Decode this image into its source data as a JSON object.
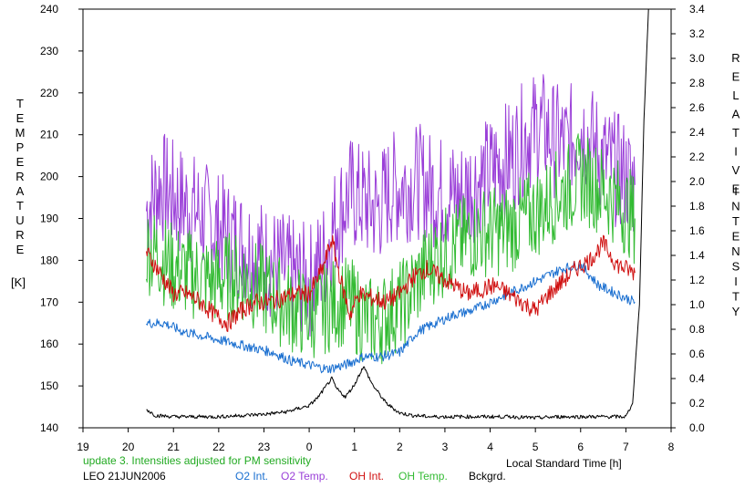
{
  "chart_data": {
    "type": "line",
    "title": "",
    "xlabel": "Local Standard Time [h]",
    "ylabel_left_letters": [
      "T",
      "E",
      "M",
      "P",
      "E",
      "R",
      "A",
      "T",
      "U",
      "R",
      "E"
    ],
    "ylabel_left_unit": "[K]",
    "ylabel_right_letters": [
      "R",
      "E",
      "L",
      "A",
      "T",
      "I",
      "V",
      "E",
      "I",
      "N",
      "T",
      "E",
      "N",
      "S",
      "I",
      "T",
      "Y"
    ],
    "xlim": [
      19,
      8
    ],
    "ylim_left": [
      140,
      240
    ],
    "ylim_right": [
      0.0,
      3.4
    ],
    "x_ticks": [
      "19",
      "20",
      "21",
      "22",
      "23",
      "0",
      "1",
      "2",
      "3",
      "4",
      "5",
      "6",
      "7",
      "8"
    ],
    "y_ticks_left": [
      "140",
      "150",
      "160",
      "170",
      "180",
      "190",
      "200",
      "210",
      "220",
      "230",
      "240"
    ],
    "y_ticks_right": [
      "0.0",
      "0.2",
      "0.4",
      "0.6",
      "0.8",
      "1.0",
      "1.2",
      "1.4",
      "1.6",
      "1.8",
      "2.0",
      "2.2",
      "2.4",
      "2.6",
      "2.8",
      "3.0",
      "3.2",
      "3.4"
    ],
    "grid": false,
    "legend_position": "bottom",
    "series": [
      {
        "name": "O2 Int.",
        "color": "#1a6fd0",
        "axis": "left",
        "x": [
          20.4,
          20.8,
          21.2,
          21.6,
          22.0,
          22.4,
          22.8,
          23.2,
          23.6,
          24.0,
          24.4,
          24.8,
          25.2,
          25.6,
          26.0,
          26.4,
          26.8,
          27.2,
          27.6,
          28.0,
          28.4,
          28.8,
          29.2,
          29.6,
          30.0,
          30.4,
          30.8,
          31.2
        ],
        "y": [
          165,
          165,
          163,
          162,
          161,
          160,
          159,
          158,
          156,
          155,
          154,
          155,
          157,
          157,
          158,
          163,
          165,
          167,
          168,
          170,
          172,
          174,
          176,
          178,
          179,
          174,
          172,
          170
        ]
      },
      {
        "name": "O2 Temp.",
        "color": "#9a3fd8",
        "axis": "left",
        "x": [
          20.4,
          20.7,
          21.0,
          21.3,
          21.6,
          21.9,
          22.2,
          22.5,
          22.8,
          23.1,
          23.4,
          23.7,
          24.0,
          24.3,
          24.6,
          24.9,
          25.2,
          25.5,
          25.8,
          26.1,
          26.4,
          26.7,
          27.0,
          27.3,
          27.6,
          27.9,
          28.2,
          28.5,
          28.8,
          29.1,
          29.4,
          29.7,
          30.0,
          30.3,
          30.6,
          30.9,
          31.2
        ],
        "y": [
          192,
          198,
          195,
          193,
          191,
          188,
          186,
          184,
          182,
          180,
          178,
          176,
          175,
          180,
          190,
          196,
          194,
          192,
          197,
          198,
          199,
          197,
          196,
          195,
          198,
          200,
          203,
          205,
          210,
          212,
          209,
          207,
          212,
          207,
          203,
          201,
          198
        ]
      },
      {
        "name": "OH Int.",
        "color": "#d01010",
        "axis": "left",
        "x": [
          20.4,
          20.7,
          21.0,
          21.3,
          21.6,
          21.9,
          22.2,
          22.5,
          22.8,
          23.1,
          23.4,
          23.7,
          24.0,
          24.3,
          24.5,
          24.7,
          24.9,
          25.1,
          25.4,
          25.7,
          26.0,
          26.3,
          26.6,
          26.9,
          27.2,
          27.5,
          27.8,
          28.1,
          28.4,
          28.7,
          29.0,
          29.3,
          29.6,
          29.9,
          30.2,
          30.5,
          30.8,
          31.2
        ],
        "y": [
          182,
          177,
          172,
          172,
          170,
          167,
          165,
          168,
          170,
          170,
          171,
          172,
          172,
          178,
          185,
          175,
          167,
          172,
          171,
          170,
          172,
          176,
          178,
          176,
          174,
          172,
          173,
          174,
          172,
          170,
          168,
          172,
          175,
          178,
          180,
          184,
          179,
          177
        ]
      },
      {
        "name": "OH Temp.",
        "color": "#33bb33",
        "axis": "left",
        "x": [
          20.4,
          20.7,
          21.0,
          21.3,
          21.6,
          21.9,
          22.2,
          22.5,
          22.8,
          23.1,
          23.4,
          23.7,
          24.0,
          24.3,
          24.6,
          24.9,
          25.2,
          25.5,
          25.8,
          26.1,
          26.4,
          26.7,
          27.0,
          27.3,
          27.6,
          27.9,
          28.2,
          28.5,
          28.8,
          29.1,
          29.4,
          29.7,
          30.0,
          30.3,
          30.6,
          30.9,
          31.2
        ],
        "y": [
          183,
          181,
          178,
          177,
          176,
          175,
          176,
          176,
          174,
          172,
          170,
          168,
          167,
          168,
          170,
          170,
          166,
          165,
          168,
          170,
          175,
          180,
          182,
          184,
          186,
          187,
          187,
          188,
          190,
          192,
          195,
          197,
          200,
          198,
          196,
          193,
          190
        ]
      },
      {
        "name": "Bckgrd.",
        "color": "#000000",
        "axis": "right",
        "x": [
          20.4,
          20.6,
          21.0,
          21.5,
          22.0,
          22.5,
          23.0,
          23.5,
          24.0,
          24.2,
          24.4,
          24.5,
          24.6,
          24.8,
          25.0,
          25.2,
          25.4,
          25.7,
          26.0,
          26.3,
          26.7,
          27.0,
          27.5,
          28.0,
          28.5,
          29.0,
          29.5,
          30.0,
          30.5,
          31.0,
          31.15,
          31.3,
          31.4,
          31.5
        ],
        "y": [
          0.15,
          0.1,
          0.09,
          0.09,
          0.09,
          0.1,
          0.11,
          0.13,
          0.18,
          0.25,
          0.35,
          0.4,
          0.32,
          0.25,
          0.35,
          0.5,
          0.35,
          0.2,
          0.12,
          0.1,
          0.09,
          0.09,
          0.09,
          0.09,
          0.09,
          0.08,
          0.09,
          0.09,
          0.09,
          0.09,
          0.2,
          1.0,
          2.5,
          3.4
        ]
      }
    ]
  },
  "footer": {
    "update_note": "update 3. Intensities adjusted for PM sensitivity",
    "station": "LEO 21JUN2006",
    "legend_labels": [
      "O2 Int.",
      "O2 Temp.",
      "OH Int.",
      "OH Temp.",
      "Bckgrd."
    ]
  }
}
